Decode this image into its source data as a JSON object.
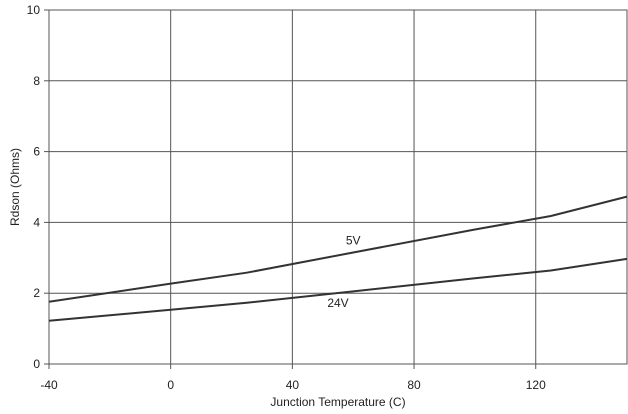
{
  "chart_data": {
    "type": "line",
    "title": "",
    "xlabel": "Junction Temperature (C)",
    "ylabel": "Rdson (Ohms)",
    "xlim": [
      -40,
      150
    ],
    "ylim": [
      0,
      10
    ],
    "grid": true,
    "x_ticks": [
      "-40",
      "0",
      "40",
      "80",
      "120"
    ],
    "y_ticks": [
      "0",
      "2",
      "4",
      "6",
      "8",
      "10"
    ],
    "series": [
      {
        "name": "5V",
        "color": "#333333",
        "x": [
          -40,
          0,
          25,
          60,
          100,
          125,
          150
        ],
        "y": [
          1.76,
          2.27,
          2.58,
          3.15,
          3.8,
          4.18,
          4.73
        ]
      },
      {
        "name": "24V",
        "color": "#333333",
        "x": [
          -40,
          0,
          25,
          60,
          100,
          125,
          150
        ],
        "y": [
          1.22,
          1.53,
          1.73,
          2.05,
          2.42,
          2.64,
          2.97
        ]
      }
    ]
  }
}
